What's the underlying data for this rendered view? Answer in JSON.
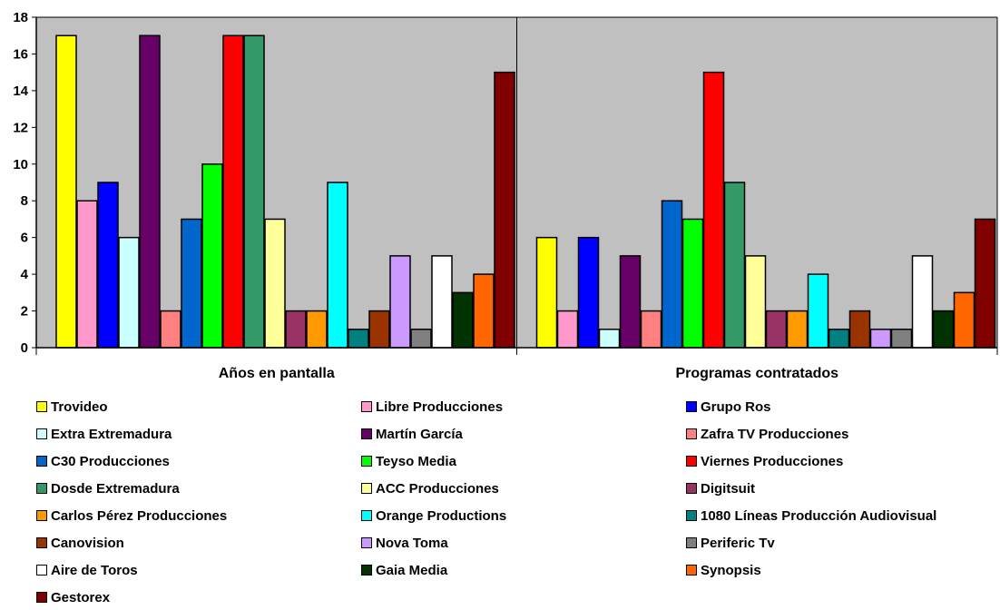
{
  "chart_data": {
    "type": "bar",
    "categories": [
      "Años en pantalla",
      "Programas contratados"
    ],
    "ylim": [
      0,
      18
    ],
    "yticks": [
      0,
      2,
      4,
      6,
      8,
      10,
      12,
      14,
      16,
      18
    ],
    "grid": false,
    "legend_position": "bottom",
    "series": [
      {
        "name": "Trovideo",
        "color": "#FFFF00",
        "values": [
          17,
          6
        ]
      },
      {
        "name": "Libre Producciones",
        "color": "#FF99CC",
        "values": [
          8,
          2
        ]
      },
      {
        "name": "Grupo Ros",
        "color": "#0000FF",
        "values": [
          9,
          6
        ]
      },
      {
        "name": "Extra Extremadura",
        "color": "#CCFFFF",
        "values": [
          6,
          1
        ]
      },
      {
        "name": "Martín García",
        "color": "#660066",
        "values": [
          17,
          5
        ]
      },
      {
        "name": "Zafra TV Producciones",
        "color": "#FF8080",
        "values": [
          2,
          2
        ]
      },
      {
        "name": "C30 Producciones",
        "color": "#0066CC",
        "values": [
          7,
          8
        ]
      },
      {
        "name": "Teyso Media",
        "color": "#00FF00",
        "values": [
          10,
          7
        ]
      },
      {
        "name": "Viernes Producciones",
        "color": "#FF0000",
        "values": [
          17,
          15
        ]
      },
      {
        "name": "Dosde Extremadura",
        "color": "#339966",
        "values": [
          17,
          9
        ]
      },
      {
        "name": "ACC Producciones",
        "color": "#FFFF99",
        "values": [
          7,
          5
        ]
      },
      {
        "name": "Digitsuit",
        "color": "#993366",
        "values": [
          2,
          2
        ]
      },
      {
        "name": "Carlos Pérez Producciones",
        "color": "#FF9900",
        "values": [
          2,
          2
        ]
      },
      {
        "name": "Orange Productions",
        "color": "#00FFFF",
        "values": [
          9,
          4
        ]
      },
      {
        "name": "1080 Líneas Producción Audiovisual",
        "color": "#008080",
        "values": [
          1,
          1
        ]
      },
      {
        "name": "Canovision",
        "color": "#993300",
        "values": [
          2,
          2
        ]
      },
      {
        "name": "Nova Toma",
        "color": "#CC99FF",
        "values": [
          5,
          1
        ]
      },
      {
        "name": "Periferic Tv",
        "color": "#808080",
        "values": [
          1,
          1
        ]
      },
      {
        "name": "Aire de Toros",
        "color": "#FFFFFF",
        "values": [
          5,
          5
        ]
      },
      {
        "name": "Gaia Media",
        "color": "#003300",
        "values": [
          3,
          2
        ]
      },
      {
        "name": "Synopsis",
        "color": "#FF6600",
        "values": [
          4,
          3
        ]
      },
      {
        "name": "Gestorex",
        "color": "#800000",
        "values": [
          15,
          7
        ]
      }
    ]
  },
  "colors": {
    "plot_background": "#C0C0C0",
    "axis": "#000000"
  }
}
